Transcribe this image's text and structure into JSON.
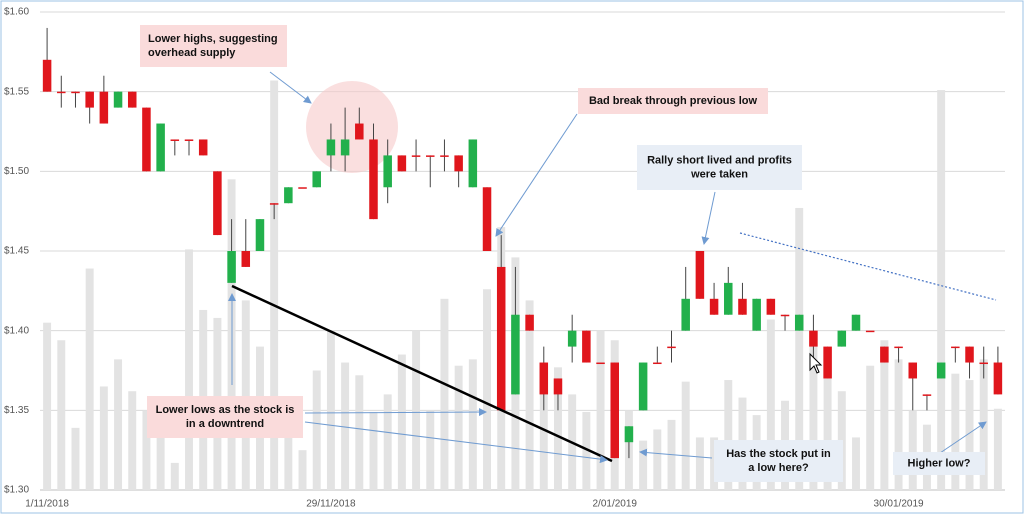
{
  "chart_data": {
    "type": "candlestick",
    "categories": [
      "1/11/2018",
      null,
      null,
      null,
      null,
      null,
      null,
      null,
      null,
      null,
      null,
      null,
      null,
      null,
      null,
      null,
      null,
      null,
      null,
      null,
      "29/11/2018",
      null,
      null,
      null,
      null,
      null,
      null,
      null,
      null,
      null,
      null,
      null,
      null,
      null,
      null,
      null,
      null,
      null,
      null,
      null,
      "2/01/2019",
      null,
      null,
      null,
      null,
      null,
      null,
      null,
      null,
      null,
      null,
      null,
      null,
      null,
      null,
      null,
      null,
      null,
      null,
      null,
      "30/01/2019",
      null,
      null,
      null,
      null,
      null,
      null,
      null
    ],
    "open": [
      1.57,
      1.55,
      1.55,
      1.55,
      1.55,
      1.54,
      1.55,
      1.54,
      1.5,
      1.52,
      1.52,
      1.52,
      1.5,
      1.43,
      1.45,
      1.45,
      1.48,
      1.48,
      1.49,
      1.49,
      1.51,
      1.51,
      1.53,
      1.52,
      1.49,
      1.51,
      1.51,
      1.51,
      1.51,
      1.51,
      1.49,
      1.49,
      1.44,
      1.36,
      1.41,
      1.38,
      1.37,
      1.39,
      1.4,
      1.38,
      1.38,
      1.33,
      1.35,
      1.38,
      1.39,
      1.4,
      1.45,
      1.42,
      1.41,
      1.42,
      1.4,
      1.42,
      1.41,
      1.4,
      1.4,
      1.39,
      1.39,
      1.4,
      1.4,
      1.39,
      1.39,
      1.38,
      1.36,
      1.37,
      1.39,
      1.39,
      1.38,
      1.38
    ],
    "high": [
      1.59,
      1.56,
      1.55,
      1.55,
      1.56,
      1.55,
      1.55,
      1.54,
      1.53,
      1.52,
      1.52,
      1.52,
      1.5,
      1.47,
      1.47,
      1.47,
      1.48,
      1.49,
      1.49,
      1.5,
      1.53,
      1.54,
      1.54,
      1.53,
      1.52,
      1.51,
      1.52,
      1.51,
      1.52,
      1.51,
      1.52,
      1.49,
      1.46,
      1.44,
      1.41,
      1.39,
      1.37,
      1.41,
      1.4,
      1.38,
      1.38,
      1.34,
      1.38,
      1.39,
      1.4,
      1.44,
      1.45,
      1.43,
      1.44,
      1.43,
      1.42,
      1.42,
      1.41,
      1.41,
      1.41,
      1.39,
      1.4,
      1.41,
      1.4,
      1.39,
      1.39,
      1.38,
      1.36,
      1.38,
      1.39,
      1.39,
      1.39,
      1.39
    ],
    "low": [
      1.55,
      1.54,
      1.54,
      1.53,
      1.53,
      1.54,
      1.54,
      1.5,
      1.5,
      1.51,
      1.51,
      1.51,
      1.46,
      1.43,
      1.44,
      1.45,
      1.47,
      1.48,
      1.49,
      1.49,
      1.5,
      1.5,
      1.52,
      1.47,
      1.48,
      1.5,
      1.5,
      1.49,
      1.5,
      1.49,
      1.49,
      1.45,
      1.35,
      1.36,
      1.4,
      1.35,
      1.35,
      1.38,
      1.38,
      1.38,
      1.32,
      1.32,
      1.35,
      1.38,
      1.38,
      1.4,
      1.42,
      1.41,
      1.41,
      1.41,
      1.4,
      1.41,
      1.4,
      1.4,
      1.38,
      1.37,
      1.39,
      1.4,
      1.4,
      1.38,
      1.38,
      1.35,
      1.35,
      1.37,
      1.38,
      1.37,
      1.37,
      1.36
    ],
    "close": [
      1.55,
      1.55,
      1.55,
      1.54,
      1.53,
      1.55,
      1.54,
      1.5,
      1.53,
      1.52,
      1.52,
      1.51,
      1.46,
      1.45,
      1.44,
      1.47,
      1.48,
      1.49,
      1.49,
      1.5,
      1.52,
      1.52,
      1.52,
      1.47,
      1.51,
      1.5,
      1.51,
      1.51,
      1.51,
      1.5,
      1.52,
      1.45,
      1.35,
      1.41,
      1.4,
      1.36,
      1.36,
      1.4,
      1.38,
      1.38,
      1.32,
      1.34,
      1.38,
      1.38,
      1.39,
      1.42,
      1.42,
      1.41,
      1.43,
      1.41,
      1.42,
      1.41,
      1.41,
      1.41,
      1.39,
      1.37,
      1.4,
      1.41,
      1.4,
      1.38,
      1.39,
      1.37,
      1.36,
      1.38,
      1.39,
      1.38,
      1.38,
      1.36
    ],
    "volume": [
      1.405,
      1.394,
      1.339,
      1.439,
      1.365,
      1.382,
      1.362,
      1.35,
      1.333,
      1.317,
      1.451,
      1.413,
      1.408,
      1.495,
      1.419,
      1.39,
      1.557,
      1.338,
      1.325,
      1.375,
      1.4,
      1.38,
      1.372,
      1.349,
      1.36,
      1.385,
      1.4,
      1.35,
      1.42,
      1.378,
      1.382,
      1.426,
      1.465,
      1.446,
      1.419,
      1.366,
      1.377,
      1.36,
      1.349,
      1.4,
      1.394,
      1.35,
      1.331,
      1.338,
      1.344,
      1.368,
      1.333,
      1.333,
      1.369,
      1.358,
      1.347,
      1.407,
      1.356,
      1.477,
      1.394,
      1.377,
      1.362,
      1.333,
      1.378,
      1.394,
      1.382,
      1.35,
      1.341,
      1.551,
      1.373,
      1.369,
      1.382,
      1.351
    ],
    "up_color": "#22b04c",
    "down_color": "#e0161c",
    "volume_color": "#e3e3e3",
    "ylim": [
      1.3,
      1.6
    ],
    "yticks": [
      {
        "value": 1.3,
        "label": "$1.30"
      },
      {
        "value": 1.35,
        "label": "$1.35"
      },
      {
        "value": 1.4,
        "label": "$1.40"
      },
      {
        "value": 1.45,
        "label": "$1.45"
      },
      {
        "value": 1.5,
        "label": "$1.50"
      },
      {
        "value": 1.55,
        "label": "$1.55"
      },
      {
        "value": 1.6,
        "label": "$1.60"
      }
    ],
    "grid": true,
    "annotations": [
      {
        "lines": [
          "Lower highs, suggesting",
          "overhead supply"
        ]
      },
      {
        "lines": [
          "Bad break through previous low"
        ]
      },
      {
        "lines": [
          "Rally short lived and profits",
          "were taken"
        ]
      },
      {
        "lines": [
          "Lower lows as the stock is",
          "in a downtrend"
        ]
      },
      {
        "lines": [
          "Has the stock put in",
          "a low here?"
        ]
      },
      {
        "lines": [
          "Higher low?"
        ]
      }
    ]
  }
}
